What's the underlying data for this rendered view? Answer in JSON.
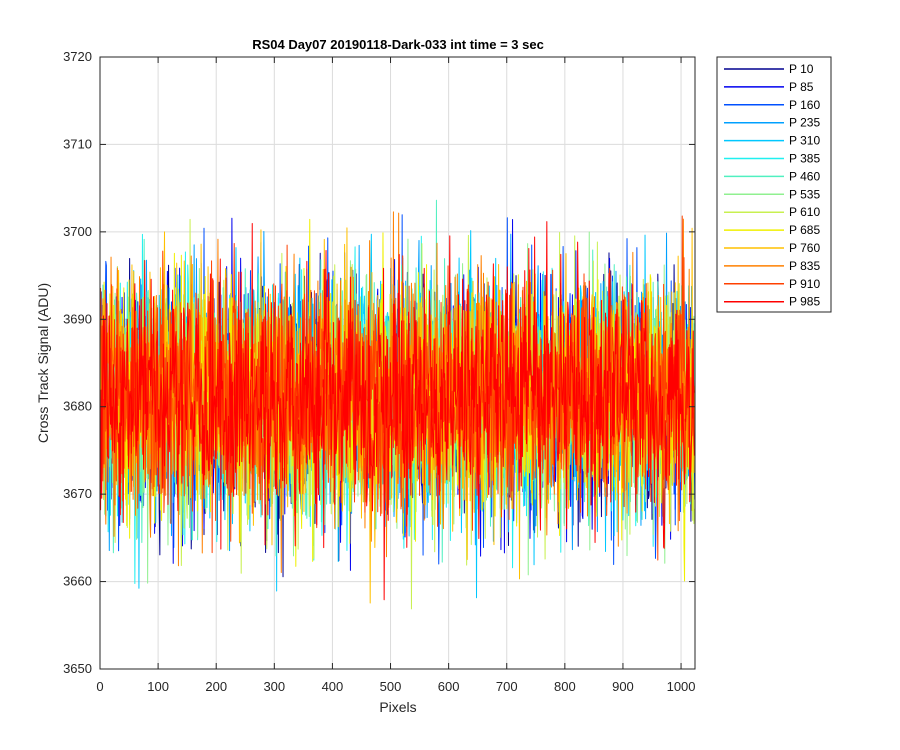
{
  "chart_data": {
    "type": "line",
    "title": "RS04 Day07 20190118-Dark-033 int time = 3 sec",
    "xlabel": "Pixels",
    "ylabel": "Cross Track Signal (ADU)",
    "xlim": [
      0,
      1024
    ],
    "ylim": [
      3650,
      3720
    ],
    "xticks": [
      0,
      100,
      200,
      300,
      400,
      500,
      600,
      700,
      800,
      900,
      1000
    ],
    "yticks": [
      3650,
      3660,
      3670,
      3680,
      3690,
      3700,
      3710,
      3720
    ],
    "grid": true,
    "legend_position": "outside-top-right",
    "series_stats": {
      "mean": 3681,
      "points": 1024
    },
    "series": [
      {
        "name": "P 10",
        "color": "#00008f",
        "mean": 3681
      },
      {
        "name": "P 85",
        "color": "#0000ef",
        "mean": 3681
      },
      {
        "name": "P 160",
        "color": "#0050ff",
        "mean": 3681
      },
      {
        "name": "P 235",
        "color": "#00a0ff",
        "mean": 3681
      },
      {
        "name": "P 310",
        "color": "#00c8ff",
        "mean": 3681
      },
      {
        "name": "P 385",
        "color": "#20f0f0",
        "mean": 3681
      },
      {
        "name": "P 460",
        "color": "#50f0c0",
        "mean": 3681
      },
      {
        "name": "P 535",
        "color": "#90f090",
        "mean": 3681
      },
      {
        "name": "P 610",
        "color": "#c8f050",
        "mean": 3681
      },
      {
        "name": "P 685",
        "color": "#f0f000",
        "mean": 3681
      },
      {
        "name": "P 760",
        "color": "#ffc000",
        "mean": 3681
      },
      {
        "name": "P 835",
        "color": "#ff8000",
        "mean": 3681
      },
      {
        "name": "P 910",
        "color": "#ff4000",
        "mean": 3681
      },
      {
        "name": "P 985",
        "color": "#ff0000",
        "mean": 3681
      }
    ]
  }
}
